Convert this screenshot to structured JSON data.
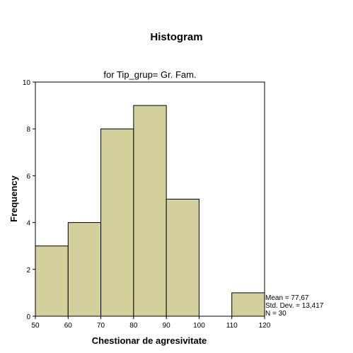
{
  "chart_data": {
    "type": "bar",
    "title": "Histogram",
    "subtitle": "for Tip_grup= Gr. Fam.",
    "xlabel": "Chestionar de agresivitate",
    "ylabel": "Frequency",
    "bins": [
      {
        "x0": 50,
        "x1": 60,
        "count": 3
      },
      {
        "x0": 60,
        "x1": 70,
        "count": 4
      },
      {
        "x0": 70,
        "x1": 80,
        "count": 8
      },
      {
        "x0": 80,
        "x1": 90,
        "count": 9
      },
      {
        "x0": 90,
        "x1": 100,
        "count": 5
      },
      {
        "x0": 100,
        "x1": 110,
        "count": 0
      },
      {
        "x0": 110,
        "x1": 120,
        "count": 1
      }
    ],
    "xlim": [
      50,
      120
    ],
    "ylim": [
      0,
      10
    ],
    "xticks": [
      "50",
      "60",
      "70",
      "80",
      "90",
      "100",
      "110",
      "120"
    ],
    "yticks": [
      "0",
      "2",
      "4",
      "6",
      "8",
      "10"
    ],
    "stats": [
      "Mean = 77,67",
      "Std. Dev. = 13,417",
      "N = 30"
    ],
    "bar_color": "#d4d09c",
    "grid": false
  }
}
